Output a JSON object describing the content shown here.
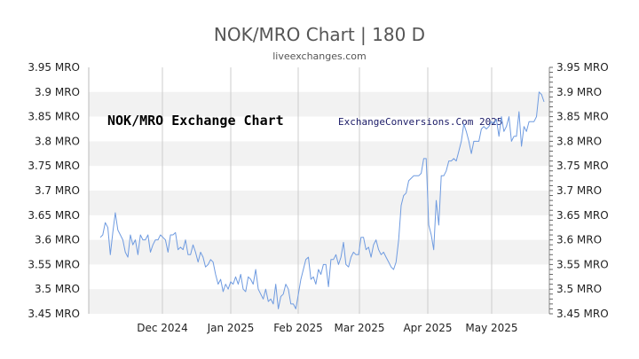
{
  "chart_data": {
    "type": "line",
    "title": "NOK/MRO Chart | 180 D",
    "subtitle": "liveexchanges.com",
    "annotations": [
      "NOK/MRO Exchange Chart",
      "ExchangeConversions.Com 2025"
    ],
    "y_tick_labels": [
      "3.95 MRO",
      "3.9 MRO",
      "3.85 MRO",
      "3.8 MRO",
      "3.75 MRO",
      "3.7 MRO",
      "3.65 MRO",
      "3.6 MRO",
      "3.55 MRO",
      "3.5 MRO",
      "3.45 MRO"
    ],
    "ylim": [
      3.45,
      3.95
    ],
    "x_tick_labels": [
      "Dec 2024",
      "Jan 2025",
      "Feb 2025",
      "Mar 2025",
      "Apr 2025",
      "May 2025"
    ],
    "grid": "alternating horizontal bands, vertical month lines",
    "series": [
      {
        "color": "#6f9be0",
        "values": [
          3.605,
          3.61,
          3.635,
          3.625,
          3.57,
          3.615,
          3.655,
          3.62,
          3.61,
          3.6,
          3.575,
          3.565,
          3.61,
          3.59,
          3.6,
          3.57,
          3.61,
          3.6,
          3.6,
          3.61,
          3.575,
          3.59,
          3.6,
          3.6,
          3.61,
          3.605,
          3.6,
          3.575,
          3.61,
          3.61,
          3.615,
          3.58,
          3.585,
          3.58,
          3.6,
          3.57,
          3.57,
          3.59,
          3.575,
          3.555,
          3.575,
          3.565,
          3.545,
          3.55,
          3.56,
          3.555,
          3.53,
          3.51,
          3.52,
          3.495,
          3.51,
          3.5,
          3.515,
          3.51,
          3.525,
          3.51,
          3.53,
          3.5,
          3.495,
          3.525,
          3.52,
          3.51,
          3.54,
          3.5,
          3.49,
          3.48,
          3.5,
          3.475,
          3.48,
          3.47,
          3.51,
          3.46,
          3.485,
          3.49,
          3.51,
          3.5,
          3.47,
          3.47,
          3.46,
          3.49,
          3.52,
          3.54,
          3.56,
          3.565,
          3.52,
          3.525,
          3.51,
          3.54,
          3.53,
          3.55,
          3.55,
          3.505,
          3.56,
          3.56,
          3.57,
          3.55,
          3.565,
          3.595,
          3.55,
          3.545,
          3.565,
          3.575,
          3.57,
          3.57,
          3.605,
          3.605,
          3.58,
          3.585,
          3.565,
          3.59,
          3.6,
          3.58,
          3.57,
          3.575,
          3.565,
          3.555,
          3.545,
          3.54,
          3.555,
          3.6,
          3.67,
          3.69,
          3.695,
          3.72,
          3.725,
          3.73,
          3.73,
          3.73,
          3.735,
          3.765,
          3.765,
          3.63,
          3.61,
          3.58,
          3.68,
          3.63,
          3.73,
          3.73,
          3.74,
          3.76,
          3.76,
          3.765,
          3.76,
          3.78,
          3.8,
          3.835,
          3.82,
          3.8,
          3.775,
          3.8,
          3.8,
          3.8,
          3.825,
          3.83,
          3.825,
          3.83,
          3.84,
          3.835,
          3.845,
          3.81,
          3.85,
          3.82,
          3.83,
          3.85,
          3.8,
          3.81,
          3.81,
          3.86,
          3.79,
          3.83,
          3.82,
          3.84,
          3.84,
          3.84,
          3.85,
          3.9,
          3.895,
          3.88
        ]
      }
    ]
  }
}
